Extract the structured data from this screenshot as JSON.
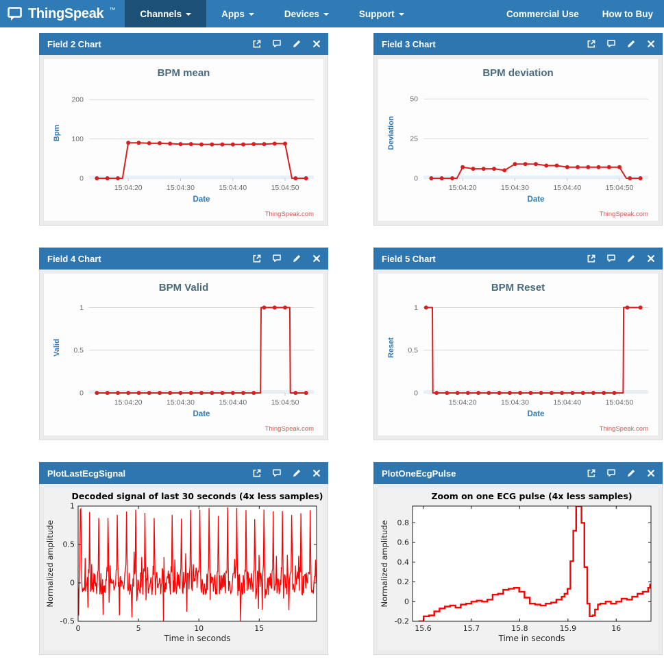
{
  "navbar": {
    "logo_text": "ThingSpeak",
    "logo_tm": "™",
    "items": [
      {
        "label": "Channels",
        "active": true
      },
      {
        "label": "Apps",
        "active": false
      },
      {
        "label": "Devices",
        "active": false
      },
      {
        "label": "Support",
        "active": false
      }
    ],
    "right": [
      "Commercial Use",
      "How to Buy"
    ]
  },
  "icons": {
    "logo": "speech-bubble",
    "open_in_new": "↗",
    "comment": "💬",
    "edit": "✎",
    "close": "✕",
    "dropdown_caret": "▾"
  },
  "colors": {
    "navbar_bg": "#2e7bb5",
    "navbar_active_bg": "#1d5077",
    "panel_header_bg": "#2e76af",
    "panel_body_bg": "#ececec",
    "panel_border": "#d9d9d9",
    "hc_bg": "#fdfdfd",
    "hc_line": "#d62020",
    "hc_grid": "#d8d8d8",
    "hc_band": "#e7f0f8",
    "hc_title": "#4a6b7c",
    "hc_axis_label": "#3179b7",
    "hc_tick": "#6b6b6b",
    "credit": "#d9534f",
    "ml_bg": "#f1f1f1",
    "ml_axes_bg": "#ffffff",
    "ml_line": "#ff0000",
    "ml_frame": "#1a1a1a",
    "ml_text": "#262626"
  },
  "panels": [
    {
      "title": "Field 2 Chart"
    },
    {
      "title": "Field 3 Chart"
    },
    {
      "title": "Field 4 Chart"
    },
    {
      "title": "Field 5 Chart"
    },
    {
      "title": "PlotLastEcgSignal"
    },
    {
      "title": "PlotOneEcgPulse"
    }
  ],
  "chart_data": [
    {
      "type": "line",
      "renderer": "highcharts",
      "title": "BPM mean",
      "xlabel": "Date",
      "ylabel": "Bpm",
      "credit": "ThingSpeak.com",
      "xlim": [
        12.5,
        55.5
      ],
      "ylim": [
        0,
        230
      ],
      "yticks": [
        {
          "v": 0,
          "label": "0"
        },
        {
          "v": 100,
          "label": "100"
        },
        {
          "v": 200,
          "label": "200"
        }
      ],
      "xticks": [
        {
          "v": 20,
          "label": "15:04:20"
        },
        {
          "v": 30,
          "label": "15:04:30"
        },
        {
          "v": 40,
          "label": "15:04:40"
        },
        {
          "v": 50,
          "label": "15:04:50"
        }
      ],
      "points": [
        [
          14,
          0
        ],
        [
          16,
          0
        ],
        [
          18,
          0
        ],
        [
          18.9,
          0,
          0
        ],
        [
          20,
          90
        ],
        [
          22,
          90
        ],
        [
          24,
          89
        ],
        [
          26,
          89
        ],
        [
          28,
          88
        ],
        [
          30,
          87
        ],
        [
          32,
          87
        ],
        [
          34,
          86
        ],
        [
          36,
          86
        ],
        [
          38,
          86
        ],
        [
          40,
          86
        ],
        [
          42,
          86
        ],
        [
          44,
          87
        ],
        [
          46,
          87
        ],
        [
          48,
          88
        ],
        [
          50,
          88
        ],
        [
          51.3,
          0,
          0
        ],
        [
          52,
          0
        ],
        [
          54,
          0
        ]
      ]
    },
    {
      "type": "line",
      "renderer": "highcharts",
      "title": "BPM deviation",
      "xlabel": "Date",
      "ylabel": "Deviation",
      "credit": "ThingSpeak.com",
      "xlim": [
        12.5,
        55.5
      ],
      "ylim": [
        0,
        57
      ],
      "yticks": [
        {
          "v": 0,
          "label": "0"
        },
        {
          "v": 25,
          "label": "25"
        },
        {
          "v": 50,
          "label": "50"
        }
      ],
      "xticks": [
        {
          "v": 20,
          "label": "15:04:20"
        },
        {
          "v": 30,
          "label": "15:04:30"
        },
        {
          "v": 40,
          "label": "15:04:40"
        },
        {
          "v": 50,
          "label": "15:04:50"
        }
      ],
      "points": [
        [
          14,
          0
        ],
        [
          16,
          0
        ],
        [
          18,
          0
        ],
        [
          18.9,
          0,
          0
        ],
        [
          20,
          7
        ],
        [
          22,
          6
        ],
        [
          24,
          6
        ],
        [
          26,
          6
        ],
        [
          28,
          5
        ],
        [
          30,
          9
        ],
        [
          32,
          9
        ],
        [
          34,
          9
        ],
        [
          36,
          8
        ],
        [
          38,
          8
        ],
        [
          40,
          7
        ],
        [
          42,
          7
        ],
        [
          44,
          7
        ],
        [
          46,
          7
        ],
        [
          48,
          7
        ],
        [
          50,
          7
        ],
        [
          51.3,
          0,
          0
        ],
        [
          52,
          0
        ],
        [
          54,
          0
        ]
      ]
    },
    {
      "type": "line",
      "renderer": "highcharts",
      "title": "BPM Valid",
      "xlabel": "Date",
      "ylabel": "Valid",
      "credit": "ThingSpeak.com",
      "xlim": [
        12.5,
        55.5
      ],
      "ylim": [
        0,
        1.06
      ],
      "yticks": [
        {
          "v": 0,
          "label": "0"
        },
        {
          "v": 0.5,
          "label": "0.5"
        },
        {
          "v": 1,
          "label": "1"
        }
      ],
      "xticks": [
        {
          "v": 20,
          "label": "15:04:20"
        },
        {
          "v": 30,
          "label": "15:04:30"
        },
        {
          "v": 40,
          "label": "15:04:40"
        },
        {
          "v": 50,
          "label": "15:04:50"
        }
      ],
      "points": [
        [
          14,
          0
        ],
        [
          16,
          0
        ],
        [
          18,
          0
        ],
        [
          20,
          0
        ],
        [
          22,
          0
        ],
        [
          24,
          0
        ],
        [
          26,
          0
        ],
        [
          28,
          0
        ],
        [
          30,
          0
        ],
        [
          32,
          0
        ],
        [
          34,
          0
        ],
        [
          36,
          0
        ],
        [
          38,
          0
        ],
        [
          40,
          0
        ],
        [
          42,
          0
        ],
        [
          44,
          0
        ],
        [
          45.3,
          0,
          0
        ],
        [
          45.4,
          1,
          0
        ],
        [
          46,
          1
        ],
        [
          48,
          1
        ],
        [
          50,
          1
        ],
        [
          50.9,
          1,
          0
        ],
        [
          51,
          0,
          0
        ],
        [
          52,
          0
        ],
        [
          54,
          0
        ]
      ]
    },
    {
      "type": "line",
      "renderer": "highcharts",
      "title": "BPM Reset",
      "xlabel": "Date",
      "ylabel": "Reset",
      "credit": "ThingSpeak.com",
      "xlim": [
        12.5,
        55.5
      ],
      "ylim": [
        0,
        1.06
      ],
      "yticks": [
        {
          "v": 0,
          "label": "0"
        },
        {
          "v": 0.5,
          "label": "0.5"
        },
        {
          "v": 1,
          "label": "1"
        }
      ],
      "xticks": [
        {
          "v": 20,
          "label": "15:04:20"
        },
        {
          "v": 30,
          "label": "15:04:30"
        },
        {
          "v": 40,
          "label": "15:04:40"
        },
        {
          "v": 50,
          "label": "15:04:50"
        }
      ],
      "points": [
        [
          13,
          1
        ],
        [
          14.2,
          1,
          0
        ],
        [
          14.3,
          0,
          0
        ],
        [
          15,
          0
        ],
        [
          17,
          0
        ],
        [
          19,
          0
        ],
        [
          21,
          0
        ],
        [
          23,
          0
        ],
        [
          25,
          0
        ],
        [
          27,
          0
        ],
        [
          29,
          0
        ],
        [
          31,
          0
        ],
        [
          33,
          0
        ],
        [
          35,
          0
        ],
        [
          37,
          0
        ],
        [
          39,
          0
        ],
        [
          41,
          0
        ],
        [
          43,
          0
        ],
        [
          45,
          0
        ],
        [
          47,
          0
        ],
        [
          49,
          0
        ],
        [
          50.7,
          0,
          0
        ],
        [
          50.8,
          1,
          0
        ],
        [
          51.5,
          1
        ],
        [
          54,
          1
        ]
      ]
    },
    {
      "type": "noise",
      "renderer": "matlab",
      "title": "Decoded signal of last 30 seconds (4x less samples)",
      "xlabel": "Time in seconds",
      "ylabel": "Normalized amplitude",
      "xlim": [
        0,
        19.75
      ],
      "ylim": [
        -0.5,
        1
      ],
      "xticks": [
        {
          "v": 0,
          "label": "0"
        },
        {
          "v": 5,
          "label": "5"
        },
        {
          "v": 10,
          "label": "10"
        },
        {
          "v": 15,
          "label": "15"
        }
      ],
      "yticks": [
        {
          "v": -0.5,
          "label": "-0.5"
        },
        {
          "v": 0,
          "label": "0"
        },
        {
          "v": 0.5,
          "label": "0.5"
        },
        {
          "v": 1,
          "label": "1"
        }
      ],
      "synth": {
        "seed": 12,
        "dt": 0.045,
        "duration": 19.75,
        "beat_offset": 0.18,
        "beat_interval": 0.76,
        "spike_min": 0.82,
        "spike_max": 1.0,
        "noise": 0.16,
        "deep_dips": [
          7.05,
          13.45
        ],
        "dip_value": -0.52
      }
    },
    {
      "type": "stairs",
      "renderer": "matlab",
      "title": "Zoom on one ECG pulse (4x less samples)",
      "xlabel": "Time in seconds",
      "ylabel": "Normalized amplitude",
      "xlim": [
        15.578,
        16.072
      ],
      "ylim": [
        -0.2,
        0.97
      ],
      "xticks": [
        {
          "v": 15.6,
          "label": "15.6"
        },
        {
          "v": 15.7,
          "label": "15.7"
        },
        {
          "v": 15.8,
          "label": "15.8"
        },
        {
          "v": 15.9,
          "label": "15.9"
        },
        {
          "v": 16,
          "label": "16"
        }
      ],
      "yticks": [
        {
          "v": -0.2,
          "label": "-0.2"
        },
        {
          "v": 0,
          "label": "0"
        },
        {
          "v": 0.2,
          "label": "0.2"
        },
        {
          "v": 0.4,
          "label": "0.4"
        },
        {
          "v": 0.6,
          "label": "0.6"
        },
        {
          "v": 0.8,
          "label": "0.8"
        }
      ],
      "points": [
        [
          15.59,
          -0.2
        ],
        [
          15.601,
          -0.15
        ],
        [
          15.612,
          -0.14
        ],
        [
          15.623,
          -0.1
        ],
        [
          15.634,
          -0.07
        ],
        [
          15.645,
          -0.05
        ],
        [
          15.656,
          -0.04
        ],
        [
          15.667,
          -0.06
        ],
        [
          15.678,
          -0.03
        ],
        [
          15.689,
          -0.02
        ],
        [
          15.7,
          0.0
        ],
        [
          15.711,
          0.01
        ],
        [
          15.722,
          0.0
        ],
        [
          15.733,
          0.02
        ],
        [
          15.744,
          0.07
        ],
        [
          15.755,
          0.08
        ],
        [
          15.766,
          0.12
        ],
        [
          15.777,
          0.13
        ],
        [
          15.788,
          0.14
        ],
        [
          15.799,
          0.1
        ],
        [
          15.81,
          0.04
        ],
        [
          15.821,
          -0.02
        ],
        [
          15.832,
          -0.03
        ],
        [
          15.843,
          -0.04
        ],
        [
          15.854,
          -0.02
        ],
        [
          15.865,
          -0.01
        ],
        [
          15.876,
          0.02
        ],
        [
          15.887,
          0.05
        ],
        [
          15.893,
          0.08
        ],
        [
          15.899,
          0.13
        ],
        [
          15.905,
          0.41
        ],
        [
          15.911,
          0.72
        ],
        [
          15.917,
          0.97
        ],
        [
          15.928,
          0.8
        ],
        [
          15.934,
          0.35
        ],
        [
          15.94,
          -0.02
        ],
        [
          15.945,
          -0.15
        ],
        [
          15.951,
          -0.14
        ],
        [
          15.956,
          -0.08
        ],
        [
          15.962,
          -0.03
        ],
        [
          15.967,
          -0.02
        ],
        [
          15.978,
          0.0
        ],
        [
          15.989,
          -0.02
        ],
        [
          16.0,
          0.0
        ],
        [
          16.011,
          0.03
        ],
        [
          16.022,
          0.02
        ],
        [
          16.033,
          0.05
        ],
        [
          16.044,
          0.08
        ],
        [
          16.055,
          0.1
        ],
        [
          16.066,
          0.14
        ],
        [
          16.07,
          0.18
        ]
      ]
    }
  ]
}
